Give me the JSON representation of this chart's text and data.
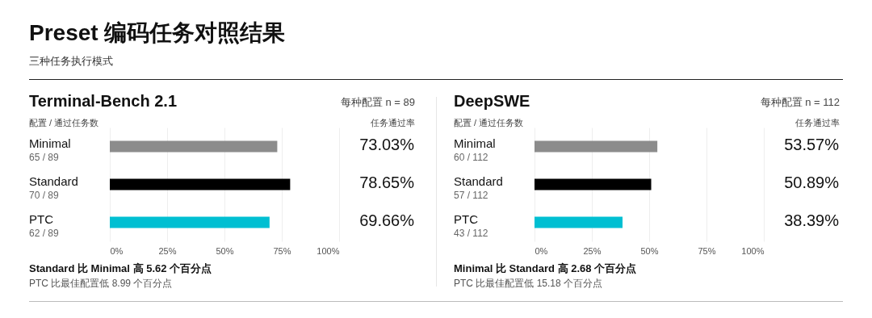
{
  "chart_data": [
    {
      "type": "other",
      "title": "Preset 编码任务对照结果",
      "subtitle": "三种任务执行模式"
    },
    {
      "type": "bar",
      "orientation": "horizontal",
      "title": "Terminal-Bench 2.1",
      "ylabel": "配置 / 通过任务数",
      "categories": [
        "Minimal",
        "Standard",
        "PTC"
      ],
      "values": [
        73.03,
        78.65,
        69.66
      ],
      "colors": [
        "#8c8c8c",
        "#000000",
        "#00bfd2"
      ],
      "value_labels": [
        "73.03%",
        "78.65%",
        "69.66%"
      ],
      "xlim": [
        0,
        100
      ],
      "xticks": [
        {
          "value": 0,
          "label": "0%"
        },
        {
          "value": 25,
          "label": "25%"
        },
        {
          "value": 50,
          "label": "50%"
        },
        {
          "value": 75,
          "label": "75%"
        },
        {
          "value": 100,
          "label": "100%"
        }
      ],
      "grid": "x",
      "annotations": [
        "每种配置 n = 89",
        "任务通过率",
        "65 / 89",
        "70 / 89",
        "62 / 89",
        "Standard 比 Minimal 高 5.62 个百分点",
        "PTC 比最佳配置低 8.99 个百分点"
      ]
    },
    {
      "type": "bar",
      "orientation": "horizontal",
      "title": "DeepSWE",
      "ylabel": "配置 / 通过任务数",
      "categories": [
        "Minimal",
        "Standard",
        "PTC"
      ],
      "values": [
        53.57,
        50.89,
        38.39
      ],
      "colors": [
        "#8c8c8c",
        "#000000",
        "#00bfd2"
      ],
      "value_labels": [
        "53.57%",
        "50.89%",
        "38.39%"
      ],
      "xlim": [
        0,
        100
      ],
      "xticks": [
        {
          "value": 0,
          "label": "0%"
        },
        {
          "value": 25,
          "label": "25%"
        },
        {
          "value": 50,
          "label": "50%"
        },
        {
          "value": 75,
          "label": "75%"
        },
        {
          "value": 100,
          "label": "100%"
        }
      ],
      "grid": "x",
      "annotations": [
        "每种配置 n = 112",
        "任务通过率",
        "60 / 112",
        "57 / 112",
        "43 / 112",
        "Minimal 比 Standard 高 2.68 个百分点",
        "PTC 比最佳配置低 15.18 个百分点"
      ]
    }
  ]
}
